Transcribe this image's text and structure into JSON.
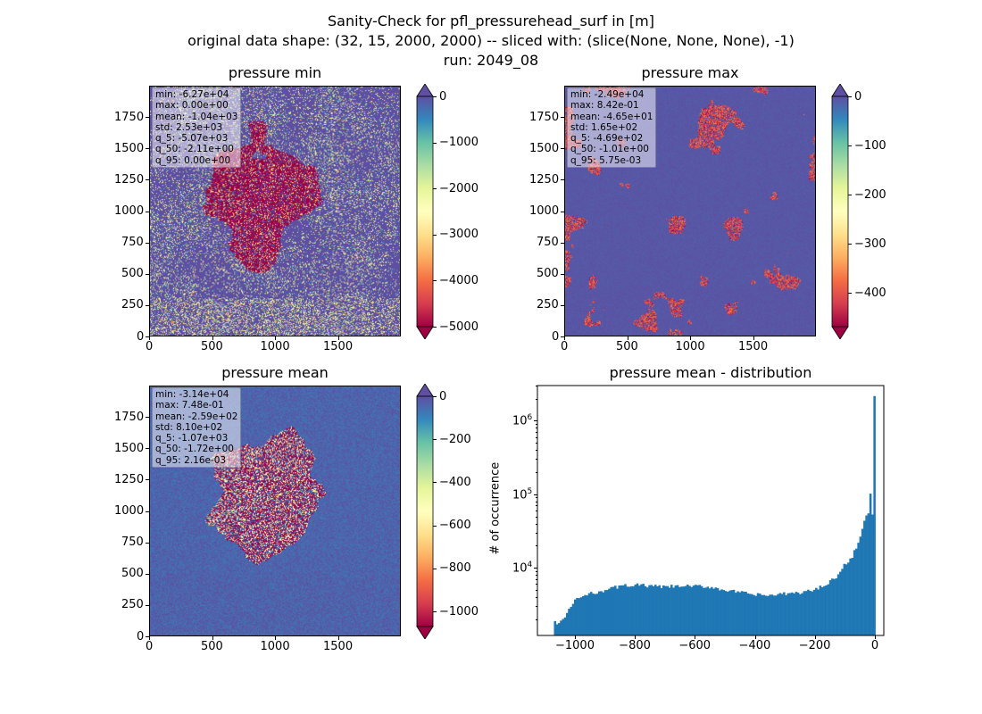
{
  "figure": {
    "suptitle_line1": "Sanity-Check for pfl_pressurehead_surf in [m]",
    "suptitle_line2": "original data shape: (32, 15, 2000, 2000) -- sliced with: (slice(None, None, None), -1)",
    "suptitle_line3": "run: 2049_08"
  },
  "panels": [
    {
      "title": "pressure min",
      "stats": [
        "min: -6.27e+04",
        "max: 0.00e+00",
        "mean: -1.04e+03",
        "std: 2.53e+03",
        "q_5: -5.07e+03",
        "q_50: -2.11e+00",
        "q_95: 0.00e+00"
      ],
      "colormap": "Spectral",
      "colorbar_range": [
        -5000,
        0
      ],
      "colorbar_ticks": [
        "0",
        "−1000",
        "−2000",
        "−3000",
        "−4000",
        "−5000"
      ],
      "extend": "both"
    },
    {
      "title": "pressure max",
      "stats": [
        "min: -2.49e+04",
        "max: 8.42e-01",
        "mean: -4.65e+01",
        "std: 1.65e+02",
        "q_5: -4.69e+02",
        "q_50: -1.01e+00",
        "q_95: 5.75e-03"
      ],
      "colormap": "Spectral",
      "colorbar_range": [
        -469,
        0.00575
      ],
      "colorbar_ticks": [
        "0",
        "−100",
        "−200",
        "−300",
        "−400"
      ],
      "extend": "both"
    },
    {
      "title": "pressure mean",
      "stats": [
        "min: -3.14e+04",
        "max: 7.48e-01",
        "mean: -2.59e+02",
        "std: 8.10e+02",
        "q_5: -1.07e+03",
        "q_50: -1.72e+00",
        "q_95: 2.16e-03"
      ],
      "colormap": "Spectral",
      "colorbar_range": [
        -1070,
        0.00216
      ],
      "colorbar_ticks": [
        "0",
        "−200",
        "−400",
        "−600",
        "−800",
        "−1000"
      ],
      "extend": "both"
    }
  ],
  "map_axes": {
    "x_ticks": [
      "0",
      "500",
      "1000",
      "1500"
    ],
    "y_ticks": [
      "0",
      "250",
      "500",
      "750",
      "1000",
      "1250",
      "1500",
      "1750"
    ]
  },
  "chart_data": {
    "type": "bar",
    "title": "pressure mean - distribution",
    "xlabel": "",
    "ylabel": "# of occurrence",
    "yscale": "log",
    "xlim": [
      -1125,
      30
    ],
    "ylim": [
      1200,
      3000000
    ],
    "x_ticks": [
      "−1000",
      "−800",
      "−600",
      "−400",
      "−200",
      "0"
    ],
    "y_ticks": [
      "10^4",
      "10^5",
      "10^6"
    ],
    "color": "#1f77b4",
    "bin_width": 6.7,
    "profile_x": [
      -1070,
      -1050,
      -1040,
      -1030,
      -1000,
      -950,
      -900,
      -850,
      -800,
      -750,
      -700,
      -650,
      -600,
      -550,
      -500,
      -450,
      -400,
      -350,
      -300,
      -250,
      -200,
      -150,
      -120,
      -100,
      -80,
      -60,
      -40,
      -30,
      -20,
      -15,
      -10,
      -5,
      -3,
      0
    ],
    "profile_y": [
      1800,
      1800,
      2000,
      2200,
      3700,
      4400,
      5000,
      5600,
      5900,
      5600,
      5500,
      5600,
      5600,
      5500,
      5000,
      4600,
      4300,
      4200,
      4400,
      4600,
      5000,
      6500,
      8000,
      11000,
      13000,
      20000,
      35000,
      50000,
      55000,
      100000,
      50000,
      65000,
      2100000,
      2100000
    ]
  },
  "colors": {
    "hist_bar": "#1f77b4",
    "under": "#9e0142",
    "over": "#5e4fa2"
  }
}
